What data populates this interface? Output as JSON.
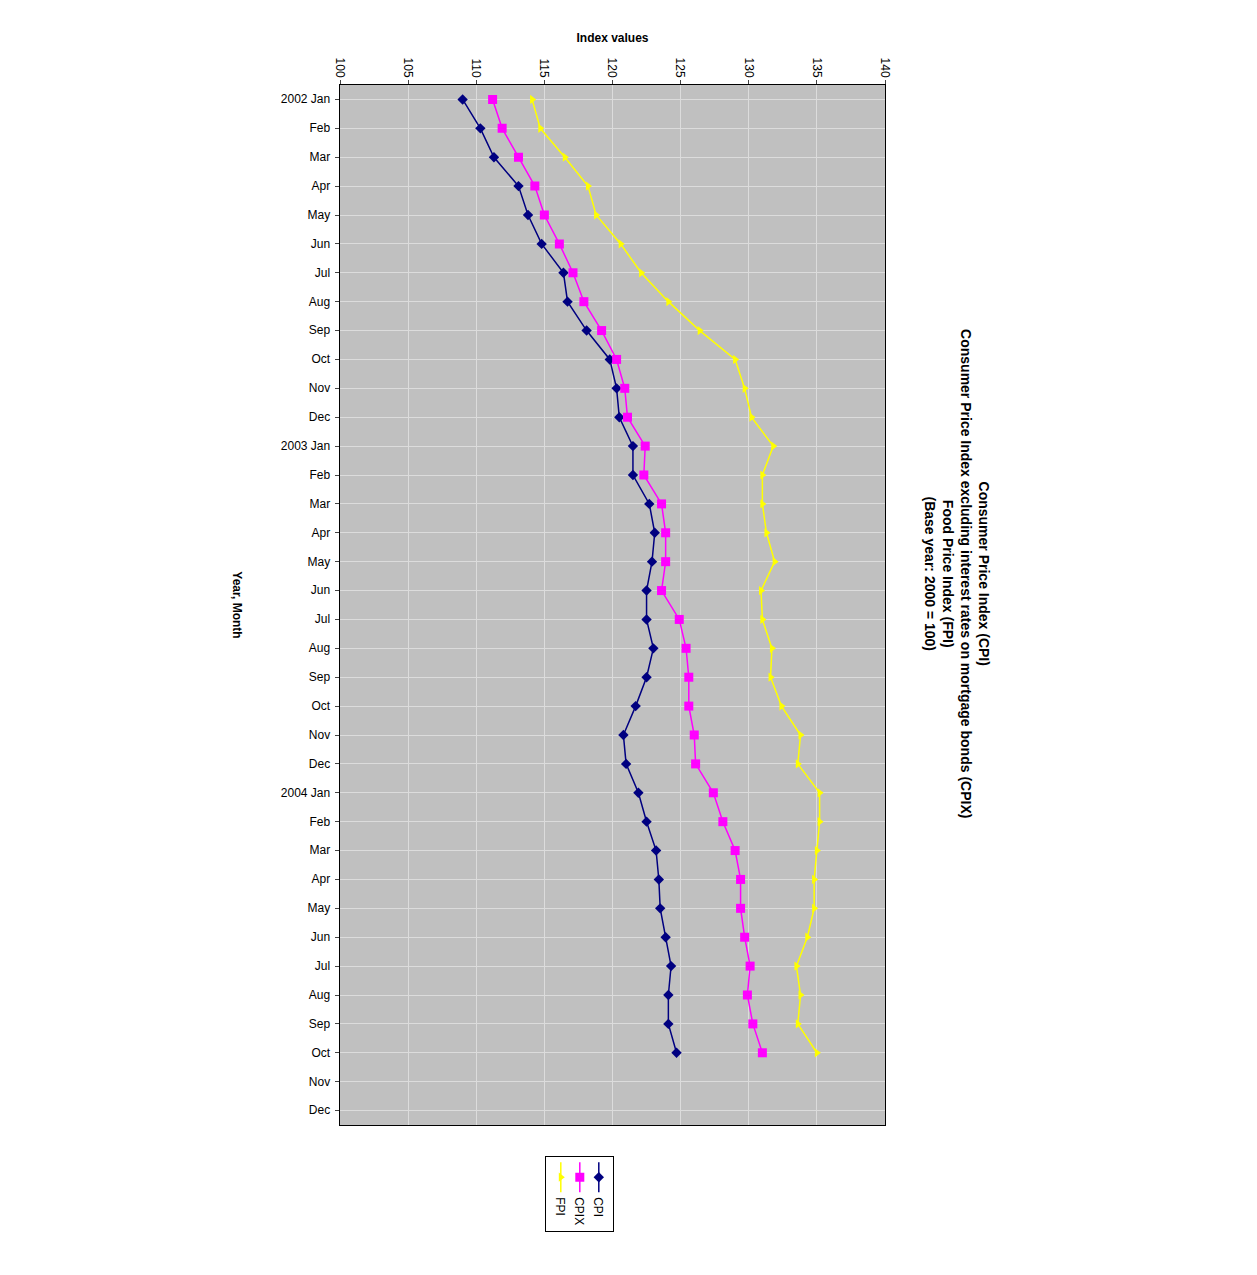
{
  "chart_data": {
    "type": "line",
    "title": "Consumer Price Index (CPI)\nConsumer Price Index excluding interest rates on mortgage bonds (CPIX)\nFood Price Index (FPI)\n(Base year: 2000 = 100)",
    "x_label": "Year, Month",
    "y_label": "Index values",
    "categories": [
      "2002 Jan",
      "Feb",
      "Mar",
      "Apr",
      "May",
      "Jun",
      "Jul",
      "Aug",
      "Sep",
      "Oct",
      "Nov",
      "Dec",
      "2003 Jan",
      "Feb",
      "Mar",
      "Apr",
      "May",
      "Jun",
      "Jul",
      "Aug",
      "Sep",
      "Oct",
      "Nov",
      "Dec",
      "2004 Jan",
      "Feb",
      "Mar",
      "Apr",
      "May",
      "Jun",
      "Jul",
      "Aug",
      "Sep",
      "Oct",
      "Nov",
      "Dec"
    ],
    "series": [
      {
        "name": "CPI",
        "color": "#000080",
        "marker": "diamond",
        "values": [
          109.0,
          110.3,
          111.3,
          113.1,
          113.8,
          114.8,
          116.4,
          116.7,
          118.1,
          119.8,
          120.3,
          120.5,
          121.5,
          121.5,
          122.7,
          123.1,
          122.9,
          122.5,
          122.5,
          123.0,
          122.5,
          121.7,
          120.8,
          121.0,
          121.9,
          122.5,
          123.2,
          123.4,
          123.5,
          123.9,
          124.3,
          124.1,
          124.1,
          124.7,
          null,
          null
        ]
      },
      {
        "name": "CPIX",
        "color": "#ff00ff",
        "marker": "square",
        "values": [
          111.2,
          111.9,
          113.1,
          114.3,
          115.0,
          116.1,
          117.1,
          117.9,
          119.2,
          120.3,
          120.9,
          121.1,
          122.4,
          122.3,
          123.6,
          123.9,
          123.9,
          123.6,
          124.9,
          125.4,
          125.6,
          125.6,
          126.0,
          126.1,
          127.4,
          128.1,
          129.0,
          129.4,
          129.4,
          129.7,
          130.1,
          129.9,
          130.3,
          131.0,
          null,
          null
        ]
      },
      {
        "name": "FPI",
        "color": "#ffff00",
        "marker": "triangle-up",
        "values": [
          114.1,
          114.7,
          116.5,
          118.2,
          118.8,
          120.6,
          122.1,
          124.1,
          126.4,
          129.0,
          129.7,
          130.2,
          131.8,
          131.0,
          131.0,
          131.3,
          131.9,
          130.9,
          131.0,
          131.7,
          131.6,
          132.4,
          133.8,
          133.6,
          135.2,
          135.2,
          135.0,
          134.8,
          134.8,
          134.3,
          133.5,
          133.8,
          133.6,
          135.0,
          null,
          null
        ]
      }
    ],
    "ylim": [
      100,
      140
    ],
    "yticks": [
      100,
      105,
      110,
      115,
      120,
      125,
      130,
      135,
      140
    ],
    "grid": true,
    "legend": "right"
  }
}
